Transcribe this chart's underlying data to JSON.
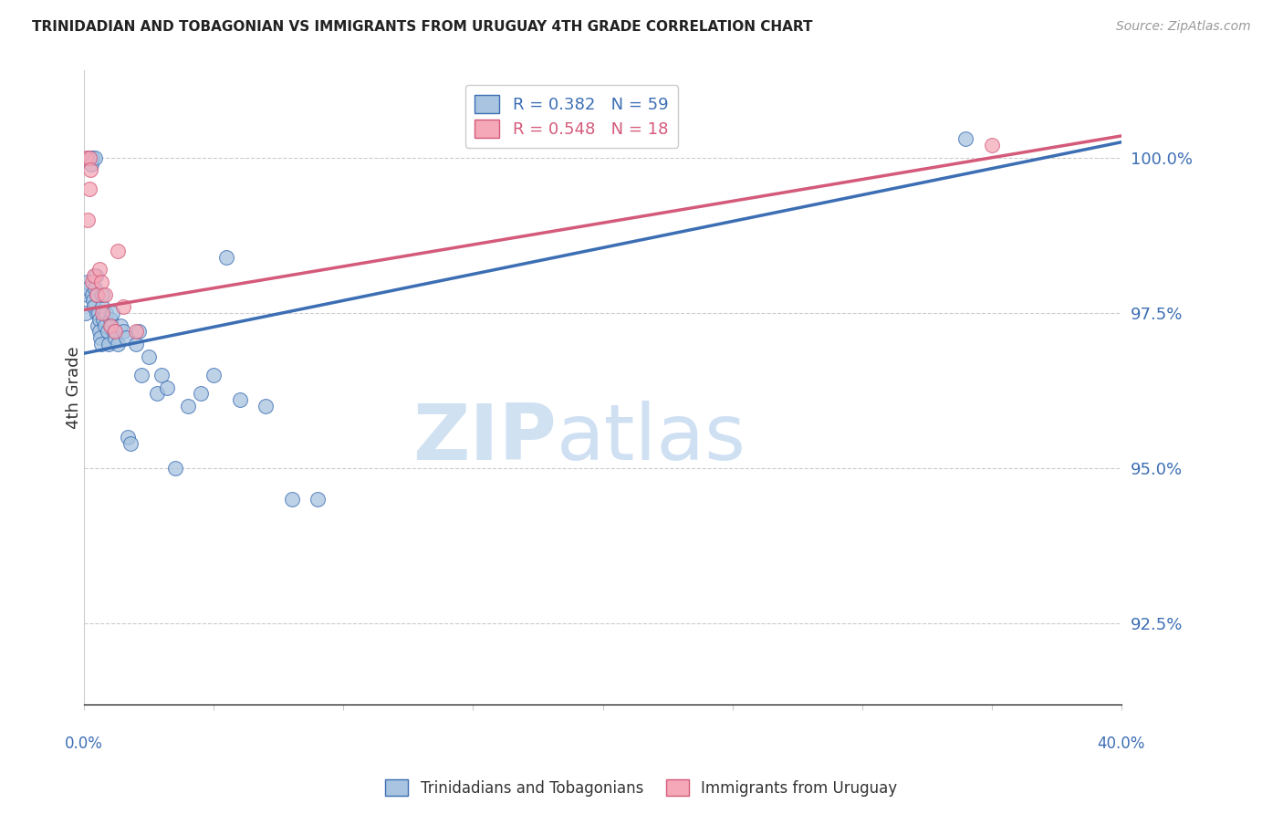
{
  "title": "TRINIDADIAN AND TOBAGONIAN VS IMMIGRANTS FROM URUGUAY 4TH GRADE CORRELATION CHART",
  "source": "Source: ZipAtlas.com",
  "ylabel": "4th Grade",
  "y_ticks": [
    92.5,
    95.0,
    97.5,
    100.0
  ],
  "y_tick_labels": [
    "92.5%",
    "95.0%",
    "97.5%",
    "100.0%"
  ],
  "xlim": [
    0.0,
    40.0
  ],
  "ylim": [
    91.2,
    101.4
  ],
  "legend_blue_label": "R = 0.382   N = 59",
  "legend_pink_label": "R = 0.548   N = 18",
  "blue_color": "#a8c4e0",
  "blue_line_color": "#3c6eb4",
  "pink_color": "#f4a8b8",
  "pink_line_color": "#d45a7a",
  "blue_x": [
    0.08,
    0.12,
    0.15,
    0.18,
    0.2,
    0.22,
    0.22,
    0.25,
    0.28,
    0.3,
    0.32,
    0.35,
    0.38,
    0.4,
    0.42,
    0.45,
    0.48,
    0.5,
    0.52,
    0.55,
    0.58,
    0.6,
    0.62,
    0.65,
    0.68,
    0.7,
    0.75,
    0.8,
    0.85,
    0.9,
    0.95,
    1.0,
    1.05,
    1.1,
    1.15,
    1.2,
    1.3,
    1.4,
    1.5,
    1.6,
    1.7,
    1.8,
    2.0,
    2.1,
    2.2,
    2.5,
    2.8,
    3.0,
    3.2,
    3.5,
    4.0,
    4.5,
    5.0,
    5.5,
    6.0,
    7.0,
    8.0,
    9.0,
    34.0
  ],
  "blue_y": [
    97.5,
    97.8,
    98.0,
    97.9,
    100.0,
    100.0,
    100.0,
    100.0,
    99.9,
    100.0,
    97.8,
    97.7,
    97.6,
    97.9,
    100.0,
    98.1,
    97.8,
    97.5,
    97.3,
    97.5,
    97.4,
    97.2,
    97.1,
    97.0,
    97.6,
    97.8,
    97.4,
    97.3,
    97.5,
    97.2,
    97.0,
    97.4,
    97.3,
    97.5,
    97.2,
    97.1,
    97.0,
    97.3,
    97.2,
    97.1,
    95.5,
    95.4,
    97.0,
    97.2,
    96.5,
    96.8,
    96.2,
    96.5,
    96.3,
    95.0,
    96.0,
    96.2,
    96.5,
    98.4,
    96.1,
    96.0,
    94.5,
    94.5,
    100.3
  ],
  "pink_x": [
    0.08,
    0.15,
    0.2,
    0.22,
    0.25,
    0.3,
    0.38,
    0.5,
    0.6,
    0.65,
    0.7,
    0.8,
    1.0,
    1.2,
    1.3,
    1.5,
    2.0,
    35.0
  ],
  "pink_y": [
    100.0,
    99.0,
    99.5,
    100.0,
    99.8,
    98.0,
    98.1,
    97.8,
    98.2,
    98.0,
    97.5,
    97.8,
    97.3,
    97.2,
    98.5,
    97.6,
    97.2,
    100.2
  ],
  "blue_trendline_x0": 0.0,
  "blue_trendline_y0": 96.85,
  "blue_trendline_x1": 40.0,
  "blue_trendline_y1": 100.25,
  "pink_trendline_x0": 0.0,
  "pink_trendline_y0": 97.55,
  "pink_trendline_x1": 40.0,
  "pink_trendline_y1": 100.35
}
